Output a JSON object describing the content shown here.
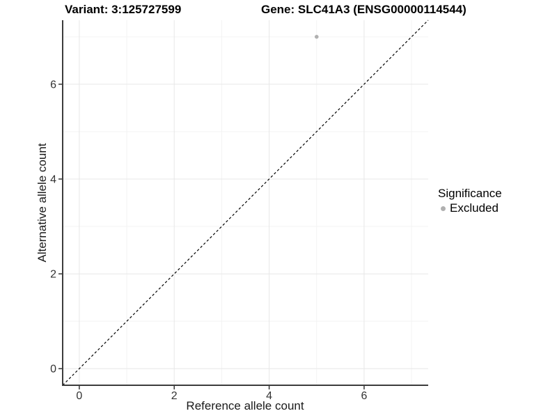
{
  "chart_data": {
    "type": "scatter",
    "title_left": "Variant: 3:125727599",
    "title_right": "Gene: SLC41A3 (ENSG00000114544)",
    "xlabel": "Reference allele count",
    "ylabel": "Alternative allele count",
    "xlim": [
      -0.35,
      7.35
    ],
    "ylim": [
      -0.35,
      7.35
    ],
    "xticks": [
      0,
      2,
      4,
      6
    ],
    "yticks": [
      0,
      2,
      4,
      6
    ],
    "xminor": [
      1,
      3,
      5,
      7
    ],
    "yminor": [
      1,
      3,
      5,
      7
    ],
    "grid": "on",
    "legend_position": "right",
    "reference_line": {
      "equation": "y = x",
      "style": "dashed",
      "color": "#000000"
    },
    "series": [
      {
        "name": "Excluded",
        "color": "#b0b0b0",
        "points": [
          {
            "x": 5,
            "y": 7
          }
        ]
      }
    ],
    "legend": {
      "title": "Significance",
      "items": [
        {
          "label": "Excluded",
          "color": "#b0b0b0"
        }
      ]
    },
    "colors": {
      "grid_major": "#e7e7e7",
      "grid_minor": "#f3f3f3",
      "axis_line": "#3c3c3c",
      "tick_mark": "#333333",
      "tick_label": "#333333"
    }
  }
}
